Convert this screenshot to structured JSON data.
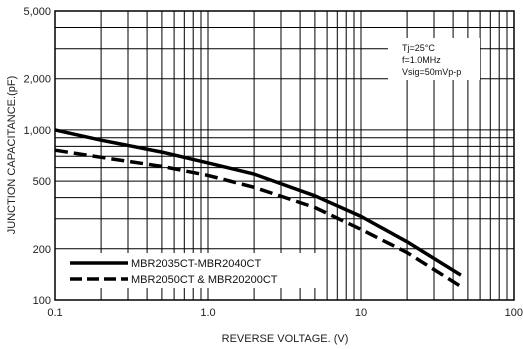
{
  "chart_data": {
    "type": "line",
    "xlabel": "REVERSE VOLTAGE. (V)",
    "ylabel": "JUNCTION CAPACITANCE.(pF)",
    "xscale": "log",
    "yscale": "log",
    "xlim": [
      0.1,
      100
    ],
    "ylim": [
      100,
      5000
    ],
    "x_ticks": [
      {
        "value": 0.1,
        "label": "0.1"
      },
      {
        "value": 1,
        "label": "1.0"
      },
      {
        "value": 10,
        "label": "10"
      },
      {
        "value": 100,
        "label": "100"
      }
    ],
    "y_ticks": [
      {
        "value": 100,
        "label": "100"
      },
      {
        "value": 200,
        "label": "200"
      },
      {
        "value": 500,
        "label": "500"
      },
      {
        "value": 1000,
        "label": "1,000"
      },
      {
        "value": 2000,
        "label": "2,000"
      },
      {
        "value": 5000,
        "label": "5,000"
      }
    ],
    "grid": true,
    "legend_position": "bottom-left",
    "conditions": [
      "Tj=25°C",
      "f=1.0MHz",
      "Vsig=50mVp-p"
    ],
    "series": [
      {
        "name": "MBR2035CT-MBR2040CT",
        "line_style": "solid",
        "color": "#000000",
        "x": [
          0.1,
          0.2,
          0.5,
          1,
          2,
          5,
          10,
          20,
          45
        ],
        "y": [
          1000,
          870,
          740,
          640,
          550,
          410,
          310,
          220,
          140
        ]
      },
      {
        "name": "MBR2050CT & MBR20200CT",
        "line_style": "dashed",
        "color": "#000000",
        "x": [
          0.1,
          0.2,
          0.5,
          1,
          2,
          5,
          10,
          20,
          45
        ],
        "y": [
          760,
          690,
          610,
          540,
          460,
          350,
          260,
          190,
          120
        ]
      }
    ]
  }
}
